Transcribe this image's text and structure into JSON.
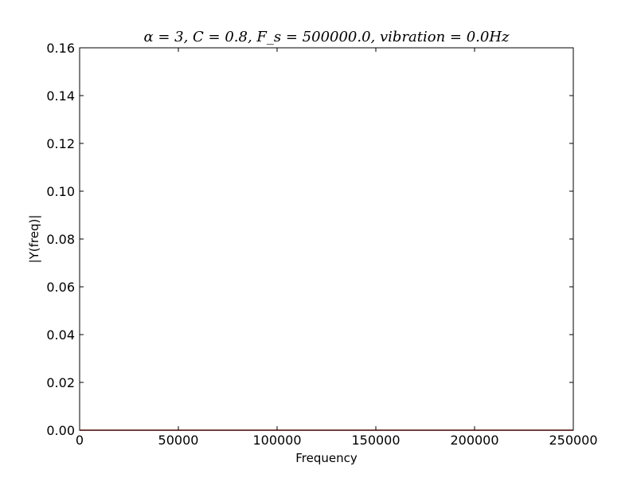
{
  "chart_data": {
    "type": "line",
    "title": "α = 3, C = 0.8, F_s = 500000.0, vibration = 0.0Hz",
    "xlabel": "Frequency",
    "ylabel": "|Y(freq)|",
    "xlim": [
      0,
      250000
    ],
    "ylim": [
      0,
      0.16
    ],
    "grid": false,
    "x_ticks": [
      0,
      50000,
      100000,
      150000,
      200000,
      250000
    ],
    "x_tick_labels": [
      "0",
      "50000",
      "100000",
      "150000",
      "200000",
      "250000"
    ],
    "y_ticks": [
      0,
      0.02,
      0.04,
      0.06,
      0.08,
      0.1,
      0.12,
      0.14,
      0.16
    ],
    "y_tick_labels": [
      "0.00",
      "0.02",
      "0.04",
      "0.06",
      "0.08",
      "0.10",
      "0.12",
      "0.14",
      "0.16"
    ],
    "series": [
      {
        "color": "#cc0000",
        "x": [
          0,
          250000
        ],
        "y": [
          0,
          0
        ]
      }
    ]
  }
}
